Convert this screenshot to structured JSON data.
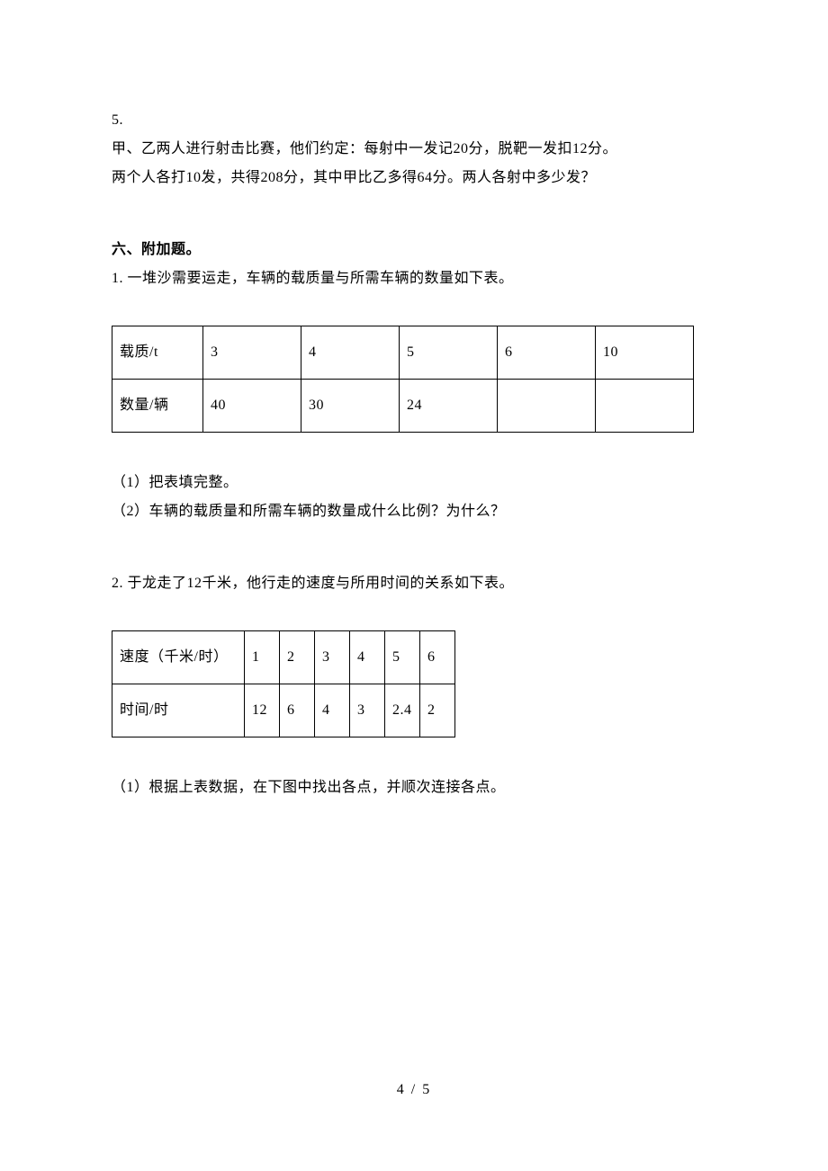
{
  "q5": {
    "num": "5.",
    "l1": "甲、乙两人进行射击比赛，他们约定：每射中一发记20分，脱靶一发扣12分。",
    "l2": "两个人各打10发，共得208分，其中甲比乙多得64分。两人各射中多少发？"
  },
  "section6": {
    "title": "六、附加题。",
    "q1": {
      "prompt": "1. 一堆沙需要运走，车辆的载质量与所需车辆的数量如下表。",
      "table": {
        "r0": [
          "载质/t",
          "3",
          "4",
          "5",
          "6",
          "10"
        ],
        "r1": [
          "数量/辆",
          "40",
          "30",
          "24",
          "",
          ""
        ]
      },
      "s1": "（1）把表填完整。",
      "s2": "（2）车辆的载质量和所需车辆的数量成什么比例？为什么？"
    },
    "q2": {
      "prompt": "2. 于龙走了12千米，他行走的速度与所用时间的关系如下表。",
      "table": {
        "r0": [
          "速度（千米/时）",
          "1",
          "2",
          "3",
          "4",
          "5",
          "6"
        ],
        "r1": [
          "时间/时",
          "12",
          "6",
          "4",
          "3",
          "2.4",
          "2"
        ]
      },
      "s1": "（1）根据上表数据，在下图中找出各点，并顺次连接各点。"
    }
  },
  "footer": "4 / 5"
}
